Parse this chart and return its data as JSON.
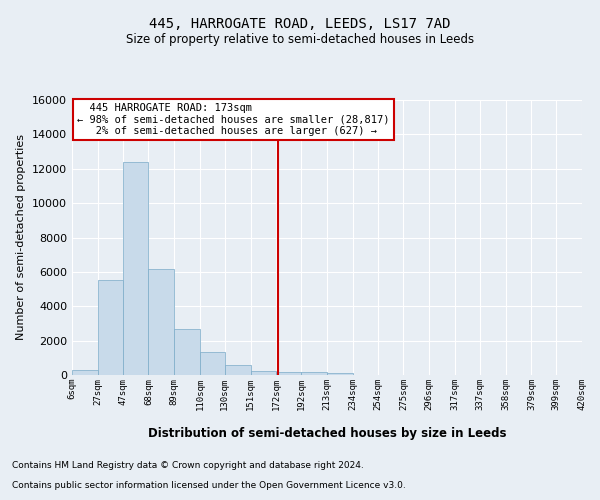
{
  "title": "445, HARROGATE ROAD, LEEDS, LS17 7AD",
  "subtitle": "Size of property relative to semi-detached houses in Leeds",
  "xlabel": "Distribution of semi-detached houses by size in Leeds",
  "ylabel": "Number of semi-detached properties",
  "property_size": 173,
  "property_label": "445 HARROGATE ROAD: 173sqm",
  "pct_smaller": 98,
  "num_smaller": "28,817",
  "pct_larger": 2,
  "num_larger": "627",
  "bar_color": "#c8daea",
  "bar_edge_color": "#7aaac8",
  "vline_color": "#cc0000",
  "annotation_box_color": "#cc0000",
  "background_color": "#e8eef4",
  "grid_color": "#ffffff",
  "tick_labels": [
    "6sqm",
    "27sqm",
    "47sqm",
    "68sqm",
    "89sqm",
    "110sqm",
    "130sqm",
    "151sqm",
    "172sqm",
    "192sqm",
    "213sqm",
    "234sqm",
    "254sqm",
    "275sqm",
    "296sqm",
    "317sqm",
    "337sqm",
    "358sqm",
    "379sqm",
    "399sqm",
    "420sqm"
  ],
  "bar_values": [
    310,
    5500,
    12400,
    6150,
    2700,
    1350,
    600,
    230,
    190,
    160,
    120,
    0,
    0,
    0,
    0,
    0,
    0,
    0,
    0,
    0
  ],
  "bin_edges": [
    6,
    27,
    47,
    68,
    89,
    110,
    130,
    151,
    172,
    192,
    213,
    234,
    254,
    275,
    296,
    317,
    337,
    358,
    379,
    399,
    420
  ],
  "ylim": [
    0,
    16000
  ],
  "yticks": [
    0,
    2000,
    4000,
    6000,
    8000,
    10000,
    12000,
    14000,
    16000
  ],
  "footnote1": "Contains HM Land Registry data © Crown copyright and database right 2024.",
  "footnote2": "Contains public sector information licensed under the Open Government Licence v3.0."
}
